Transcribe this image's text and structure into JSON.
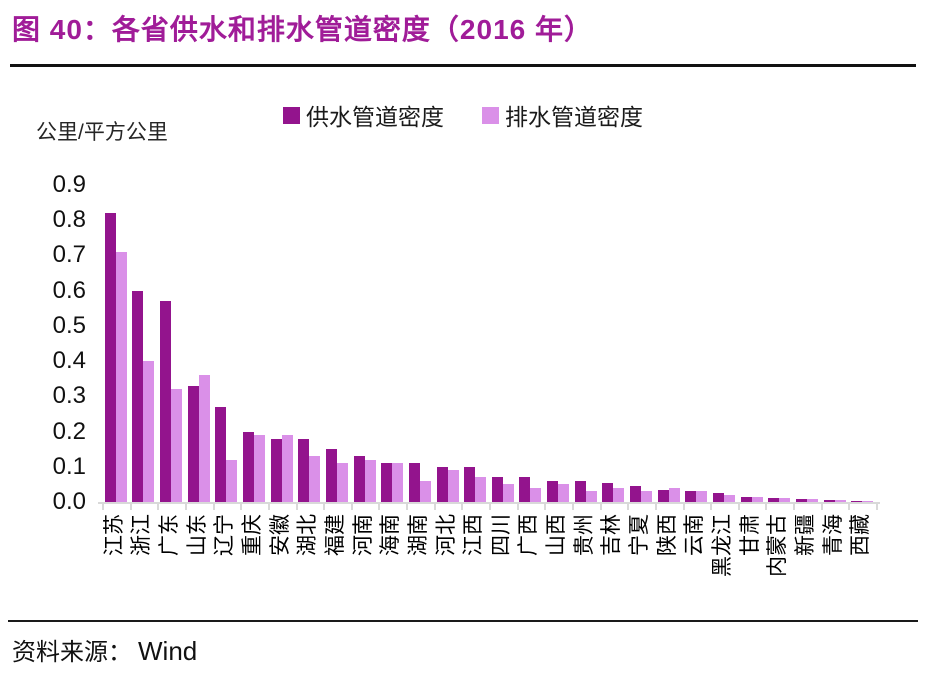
{
  "header": {
    "title": "图 40：各省供水和排水管道密度（2016 年）"
  },
  "legend": [
    {
      "label": "供水管道密度",
      "color": "#93148D"
    },
    {
      "label": "排水管道密度",
      "color": "#DA90E8"
    }
  ],
  "chart_data": {
    "type": "bar",
    "title": "各省供水和排水管道密度（2016 年）",
    "unit_label": "公里/平方公里",
    "categories": [
      "江苏",
      "浙江",
      "广东",
      "山东",
      "辽宁",
      "重庆",
      "安徽",
      "湖北",
      "福建",
      "河南",
      "海南",
      "湖南",
      "河北",
      "江西",
      "四川",
      "广西",
      "山西",
      "贵州",
      "吉林",
      "宁夏",
      "陕西",
      "云南",
      "黑龙江",
      "甘肃",
      "内蒙古",
      "新疆",
      "青海",
      "西藏"
    ],
    "series": [
      {
        "name": "供水管道密度",
        "color": "#93148D",
        "values": [
          0.82,
          0.6,
          0.57,
          0.33,
          0.27,
          0.2,
          0.18,
          0.18,
          0.15,
          0.13,
          0.11,
          0.11,
          0.1,
          0.1,
          0.07,
          0.07,
          0.06,
          0.06,
          0.055,
          0.045,
          0.035,
          0.03,
          0.025,
          0.015,
          0.011,
          0.008,
          0.006,
          0.003
        ]
      },
      {
        "name": "排水管道密度",
        "color": "#DA90E8",
        "values": [
          0.71,
          0.4,
          0.32,
          0.36,
          0.12,
          0.19,
          0.19,
          0.13,
          0.11,
          0.12,
          0.11,
          0.06,
          0.09,
          0.07,
          0.05,
          0.04,
          0.05,
          0.03,
          0.04,
          0.03,
          0.04,
          0.03,
          0.02,
          0.015,
          0.011,
          0.008,
          0.005,
          0.004
        ]
      }
    ],
    "ylabel": "公里/平方公里",
    "xlabel": "",
    "ylim": [
      0.0,
      0.9
    ],
    "ytick_step": 0.1,
    "grid": false,
    "legend_position": "top-center"
  },
  "footer": {
    "source_label": "资料来源：",
    "source_value": "Wind"
  }
}
